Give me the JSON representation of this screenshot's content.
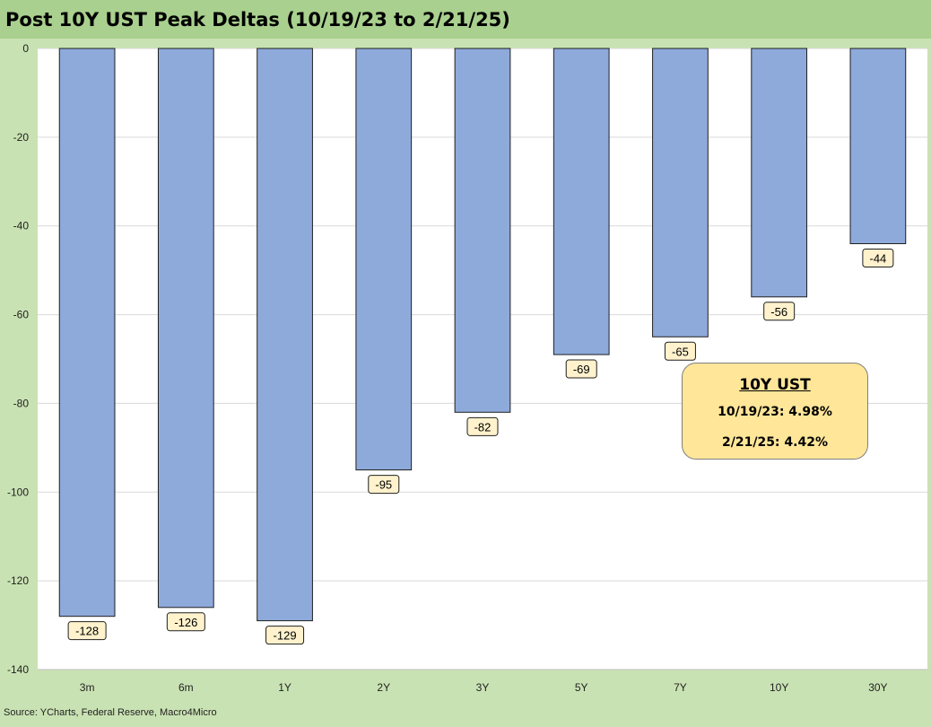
{
  "title": "Post 10Y UST Peak Deltas (10/19/23 to 2/21/25)",
  "source": "Source: YCharts, Federal Reserve, Macro4Micro",
  "callout": {
    "title": "10Y UST",
    "line1": "10/19/23: 4.98%",
    "line2": "2/21/25: 4.42%"
  },
  "colors": {
    "background": "#c9e2b3",
    "title_bar": "#a9d08e",
    "plot": "#ffffff",
    "bar": "#8eaadb",
    "label_box": "#fff2cc",
    "callout": "#ffe699"
  },
  "chart_data": {
    "type": "bar",
    "title": "Post 10Y UST Peak Deltas (10/19/23 to 2/21/25)",
    "categories": [
      "3m",
      "6m",
      "1Y",
      "2Y",
      "3Y",
      "5Y",
      "7Y",
      "10Y",
      "30Y"
    ],
    "values": [
      -128,
      -126,
      -129,
      -95,
      -82,
      -69,
      -65,
      -56,
      -44
    ],
    "data_labels": [
      "-128",
      "-126",
      "-129",
      "-95",
      "-82",
      "-69",
      "-65",
      "-56",
      "-44"
    ],
    "ylim": [
      -140,
      0
    ],
    "yticks": [
      0,
      -20,
      -40,
      -60,
      -80,
      -100,
      -120,
      -140
    ],
    "ytick_labels": [
      "0",
      "-20",
      "-40",
      "-60",
      "-80",
      "-100",
      "-120",
      "-140"
    ],
    "grid": true,
    "legend": "none",
    "xlabel": "",
    "ylabel": ""
  }
}
